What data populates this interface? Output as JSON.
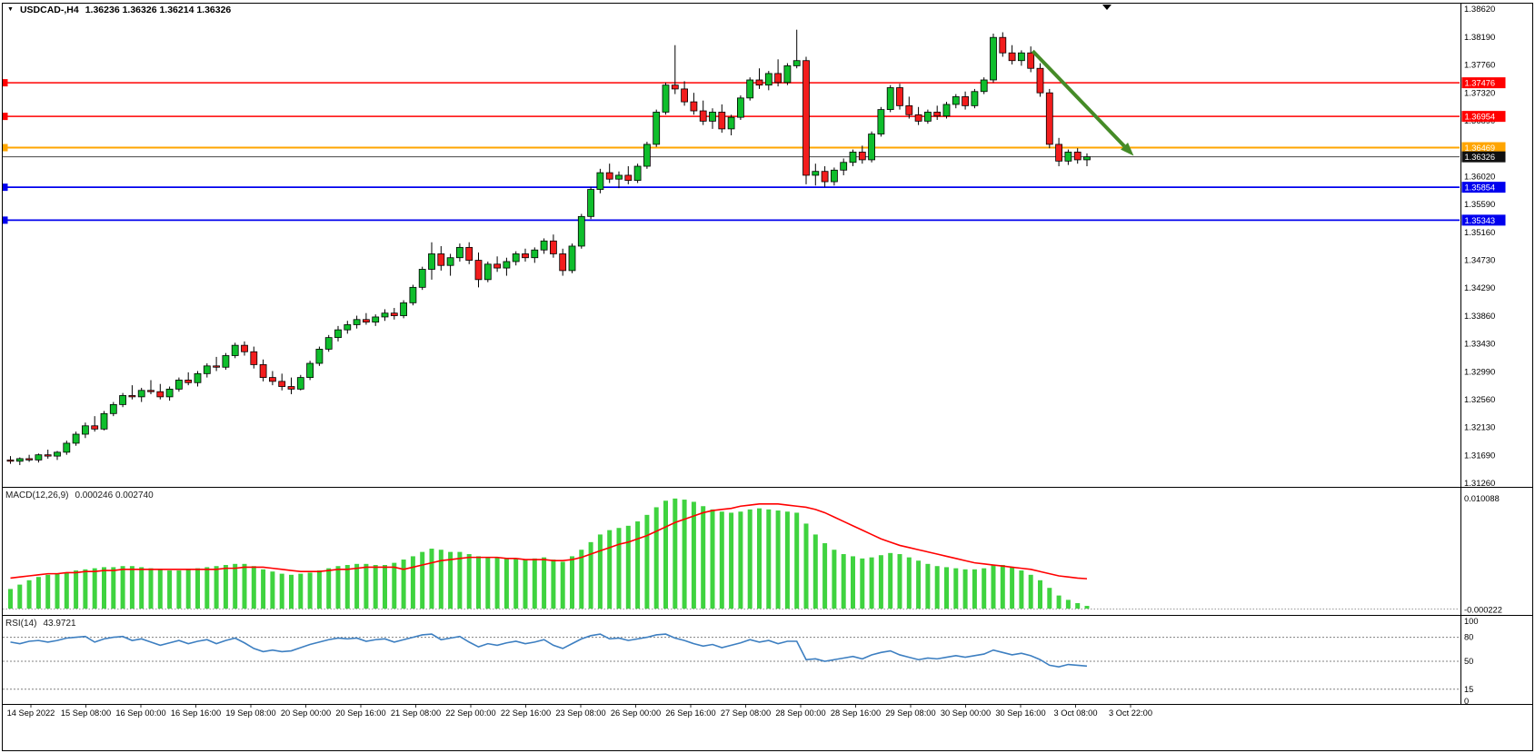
{
  "header": {
    "symbol": "USDCAD-,H4",
    "ohlc": "1.36236 1.36326 1.36214 1.36326"
  },
  "indicators": {
    "macd_name": "MACD(12,26,9)",
    "macd_values": "0.000246 0.002740",
    "rsi_name": "RSI(14)",
    "rsi_value": "43.9721"
  },
  "colors": {
    "candle_up": "#0fbe2c",
    "candle_down": "#f21d1d",
    "wick": "#000000",
    "macd_bar": "#3fd33f",
    "macd_signal": "#ff0000",
    "rsi_line": "#3d7fc1",
    "axis_text": "#000000",
    "background": "#ffffff",
    "arrow": "#458b27"
  },
  "chart_data": {
    "type": "candlestick",
    "symbol": "USDCAD-",
    "timeframe": "H4",
    "ohlc_display": {
      "open": 1.36236,
      "high": 1.36326,
      "low": 1.36214,
      "close": 1.36326
    },
    "y_axis": {
      "max": 1.3862,
      "min": 1.3126,
      "labels": [
        "1.38620",
        "1.38190",
        "1.37760",
        "1.37320",
        "1.36890",
        "1.36460",
        "1.36020",
        "1.35590",
        "1.35160",
        "1.34730",
        "1.34290",
        "1.33860",
        "1.33430",
        "1.32990",
        "1.32560",
        "1.32130",
        "1.31690",
        "1.31260"
      ]
    },
    "x_axis": {
      "labels": [
        "14 Sep 2022",
        "15 Sep 08:00",
        "16 Sep 00:00",
        "16 Sep 16:00",
        "19 Sep 08:00",
        "20 Sep 00:00",
        "20 Sep 16:00",
        "21 Sep 08:00",
        "22 Sep 00:00",
        "22 Sep 16:00",
        "23 Sep 08:00",
        "26 Sep 00:00",
        "26 Sep 16:00",
        "27 Sep 08:00",
        "28 Sep 00:00",
        "28 Sep 16:00",
        "29 Sep 08:00",
        "30 Sep 00:00",
        "30 Sep 16:00",
        "3 Oct 08:00",
        "3 Oct 22:00"
      ]
    },
    "levels": [
      {
        "label": "1.37476",
        "price": 1.37476,
        "color": "#ff0000",
        "width": 1.4
      },
      {
        "label": "1.36954",
        "price": 1.36954,
        "color": "#ff0000",
        "width": 1.4
      },
      {
        "label": "1.36469",
        "price": 1.36469,
        "color": "#ffa500",
        "width": 2
      },
      {
        "label": "1.36326",
        "price": 1.36326,
        "color": "#444444",
        "width": 1,
        "tag_bg": "#101010"
      },
      {
        "label": "1.35854",
        "price": 1.35854,
        "color": "#0000ee",
        "width": 1.8
      },
      {
        "label": "1.35343",
        "price": 1.35343,
        "color": "#0000ee",
        "width": 1.8
      }
    ],
    "trend_arrow": {
      "from_bar": 109.2,
      "from_price": 1.3797,
      "to_bar": 120.0,
      "to_price": 1.3634,
      "color": "#458b27"
    },
    "candles": [
      [
        1.3162,
        1.3168,
        1.3156,
        1.316
      ],
      [
        1.316,
        1.3166,
        1.3154,
        1.3164
      ],
      [
        1.3164,
        1.317,
        1.3159,
        1.3162
      ],
      [
        1.3162,
        1.3172,
        1.3158,
        1.317
      ],
      [
        1.317,
        1.3178,
        1.3164,
        1.3168
      ],
      [
        1.3168,
        1.3176,
        1.3162,
        1.3174
      ],
      [
        1.3174,
        1.3192,
        1.317,
        1.3188
      ],
      [
        1.3188,
        1.3206,
        1.3184,
        1.3202
      ],
      [
        1.3202,
        1.322,
        1.3196,
        1.3215
      ],
      [
        1.3215,
        1.323,
        1.3206,
        1.321
      ],
      [
        1.321,
        1.3238,
        1.3208,
        1.3234
      ],
      [
        1.3234,
        1.3252,
        1.323,
        1.3248
      ],
      [
        1.3248,
        1.3266,
        1.3244,
        1.3262
      ],
      [
        1.3262,
        1.3278,
        1.3256,
        1.326
      ],
      [
        1.326,
        1.3274,
        1.3252,
        1.327
      ],
      [
        1.327,
        1.3286,
        1.3264,
        1.3268
      ],
      [
        1.3268,
        1.328,
        1.3256,
        1.326
      ],
      [
        1.326,
        1.3276,
        1.3254,
        1.3272
      ],
      [
        1.3272,
        1.329,
        1.3268,
        1.3286
      ],
      [
        1.3286,
        1.3298,
        1.3278,
        1.3282
      ],
      [
        1.3282,
        1.33,
        1.3276,
        1.3296
      ],
      [
        1.3296,
        1.3312,
        1.329,
        1.3308
      ],
      [
        1.3308,
        1.3322,
        1.33,
        1.3306
      ],
      [
        1.3306,
        1.3328,
        1.3302,
        1.3324
      ],
      [
        1.3324,
        1.3344,
        1.332,
        1.334
      ],
      [
        1.334,
        1.3346,
        1.3324,
        1.333
      ],
      [
        1.333,
        1.3338,
        1.3304,
        1.331
      ],
      [
        1.331,
        1.3318,
        1.3284,
        1.329
      ],
      [
        1.329,
        1.33,
        1.3278,
        1.3284
      ],
      [
        1.3284,
        1.3296,
        1.327,
        1.3276
      ],
      [
        1.3276,
        1.329,
        1.3264,
        1.3272
      ],
      [
        1.3272,
        1.3294,
        1.327,
        1.329
      ],
      [
        1.329,
        1.3316,
        1.3286,
        1.3312
      ],
      [
        1.3312,
        1.3338,
        1.3308,
        1.3334
      ],
      [
        1.3334,
        1.3356,
        1.333,
        1.3352
      ],
      [
        1.3352,
        1.337,
        1.3346,
        1.3364
      ],
      [
        1.3364,
        1.3378,
        1.3358,
        1.3372
      ],
      [
        1.3372,
        1.3386,
        1.3366,
        1.338
      ],
      [
        1.338,
        1.339,
        1.3372,
        1.3376
      ],
      [
        1.3376,
        1.3388,
        1.337,
        1.3384
      ],
      [
        1.3384,
        1.3396,
        1.3378,
        1.339
      ],
      [
        1.339,
        1.3398,
        1.338,
        1.3386
      ],
      [
        1.3386,
        1.341,
        1.3382,
        1.3406
      ],
      [
        1.3406,
        1.3434,
        1.3402,
        1.343
      ],
      [
        1.343,
        1.3462,
        1.3426,
        1.3458
      ],
      [
        1.3458,
        1.35,
        1.3442,
        1.3482
      ],
      [
        1.3482,
        1.3494,
        1.3456,
        1.3464
      ],
      [
        1.3464,
        1.3482,
        1.3448,
        1.3476
      ],
      [
        1.3476,
        1.3498,
        1.347,
        1.3492
      ],
      [
        1.3492,
        1.35,
        1.3466,
        1.3472
      ],
      [
        1.3472,
        1.3484,
        1.343,
        1.3442
      ],
      [
        1.3442,
        1.347,
        1.3438,
        1.3466
      ],
      [
        1.3466,
        1.3478,
        1.3454,
        1.346
      ],
      [
        1.346,
        1.3476,
        1.3448,
        1.347
      ],
      [
        1.347,
        1.3486,
        1.3464,
        1.3482
      ],
      [
        1.3482,
        1.349,
        1.347,
        1.3476
      ],
      [
        1.3476,
        1.3492,
        1.3468,
        1.3488
      ],
      [
        1.3488,
        1.3506,
        1.3482,
        1.3502
      ],
      [
        1.3502,
        1.3512,
        1.3476,
        1.3482
      ],
      [
        1.3482,
        1.349,
        1.3448,
        1.3456
      ],
      [
        1.3456,
        1.3498,
        1.3452,
        1.3494
      ],
      [
        1.3494,
        1.3544,
        1.349,
        1.354
      ],
      [
        1.354,
        1.3586,
        1.3536,
        1.3582
      ],
      [
        1.3582,
        1.3614,
        1.3576,
        1.3608
      ],
      [
        1.3608,
        1.3622,
        1.3592,
        1.3598
      ],
      [
        1.3598,
        1.361,
        1.3584,
        1.3604
      ],
      [
        1.3604,
        1.3618,
        1.359,
        1.3596
      ],
      [
        1.3596,
        1.3622,
        1.3592,
        1.3618
      ],
      [
        1.3618,
        1.3656,
        1.3614,
        1.3652
      ],
      [
        1.3652,
        1.3706,
        1.3648,
        1.3702
      ],
      [
        1.3702,
        1.3748,
        1.3698,
        1.3744
      ],
      [
        1.3744,
        1.3806,
        1.373,
        1.3738
      ],
      [
        1.3738,
        1.375,
        1.3712,
        1.3718
      ],
      [
        1.3718,
        1.3732,
        1.3698,
        1.3704
      ],
      [
        1.3704,
        1.372,
        1.3682,
        1.3688
      ],
      [
        1.3688,
        1.3708,
        1.3676,
        1.3702
      ],
      [
        1.3702,
        1.3714,
        1.367,
        1.3676
      ],
      [
        1.3676,
        1.3698,
        1.3666,
        1.3694
      ],
      [
        1.3694,
        1.3728,
        1.369,
        1.3724
      ],
      [
        1.3724,
        1.3756,
        1.372,
        1.3752
      ],
      [
        1.3752,
        1.377,
        1.3738,
        1.3744
      ],
      [
        1.3744,
        1.3766,
        1.3736,
        1.3762
      ],
      [
        1.3762,
        1.3784,
        1.3742,
        1.3748
      ],
      [
        1.3748,
        1.3778,
        1.3744,
        1.3774
      ],
      [
        1.3774,
        1.383,
        1.377,
        1.3782
      ],
      [
        1.3782,
        1.3788,
        1.359,
        1.3604
      ],
      [
        1.3604,
        1.3622,
        1.3588,
        1.361
      ],
      [
        1.361,
        1.3618,
        1.3586,
        1.3594
      ],
      [
        1.3594,
        1.3616,
        1.3588,
        1.3612
      ],
      [
        1.3612,
        1.363,
        1.3604,
        1.3624
      ],
      [
        1.3624,
        1.3644,
        1.3618,
        1.364
      ],
      [
        1.364,
        1.365,
        1.3622,
        1.3628
      ],
      [
        1.3628,
        1.3672,
        1.3624,
        1.3668
      ],
      [
        1.3668,
        1.371,
        1.3664,
        1.3706
      ],
      [
        1.3706,
        1.3744,
        1.3702,
        1.374
      ],
      [
        1.374,
        1.3746,
        1.3706,
        1.3712
      ],
      [
        1.3712,
        1.3726,
        1.3692,
        1.3698
      ],
      [
        1.3698,
        1.371,
        1.3682,
        1.3688
      ],
      [
        1.3688,
        1.3706,
        1.3684,
        1.3702
      ],
      [
        1.3702,
        1.3712,
        1.369,
        1.3696
      ],
      [
        1.3696,
        1.3718,
        1.3692,
        1.3714
      ],
      [
        1.3714,
        1.373,
        1.3708,
        1.3726
      ],
      [
        1.3726,
        1.3734,
        1.3706,
        1.3712
      ],
      [
        1.3712,
        1.3738,
        1.3708,
        1.3734
      ],
      [
        1.3734,
        1.3756,
        1.373,
        1.3752
      ],
      [
        1.3752,
        1.3824,
        1.3748,
        1.3818
      ],
      [
        1.3818,
        1.3826,
        1.3788,
        1.3794
      ],
      [
        1.3794,
        1.3806,
        1.3776,
        1.3782
      ],
      [
        1.3782,
        1.3798,
        1.3774,
        1.3794
      ],
      [
        1.3794,
        1.3804,
        1.3764,
        1.377
      ],
      [
        1.377,
        1.3778,
        1.3726,
        1.3732
      ],
      [
        1.3732,
        1.3738,
        1.3646,
        1.3652
      ],
      [
        1.3652,
        1.3662,
        1.3618,
        1.3626
      ],
      [
        1.3626,
        1.3644,
        1.362,
        1.364
      ],
      [
        1.364,
        1.3646,
        1.3622,
        1.3628
      ],
      [
        1.3628,
        1.3638,
        1.3618,
        1.36326
      ]
    ],
    "macd": {
      "label": "MACD(12,26,9)",
      "value_macd": 0.000246,
      "value_signal": 0.00274,
      "axis_max": 0.010088,
      "axis_min": -0.000222,
      "axis_labels": [
        "0.010088",
        "-0.000222"
      ],
      "histogram": [
        0.0018,
        0.0022,
        0.0026,
        0.0029,
        0.0031,
        0.0032,
        0.0033,
        0.0035,
        0.0036,
        0.0037,
        0.0038,
        0.0038,
        0.0039,
        0.0039,
        0.0038,
        0.0037,
        0.0036,
        0.0035,
        0.0035,
        0.0036,
        0.0037,
        0.0038,
        0.0039,
        0.004,
        0.0041,
        0.0041,
        0.0039,
        0.0036,
        0.0034,
        0.0032,
        0.0031,
        0.0032,
        0.0033,
        0.0035,
        0.0037,
        0.0039,
        0.004,
        0.0041,
        0.0041,
        0.004,
        0.004,
        0.0042,
        0.0045,
        0.0048,
        0.0052,
        0.0055,
        0.0054,
        0.0052,
        0.0052,
        0.005,
        0.0048,
        0.0047,
        0.0047,
        0.0046,
        0.0046,
        0.0045,
        0.0046,
        0.0047,
        0.0045,
        0.0043,
        0.0048,
        0.0054,
        0.0061,
        0.0068,
        0.0072,
        0.0074,
        0.0076,
        0.008,
        0.0086,
        0.0093,
        0.0099,
        0.0101,
        0.01,
        0.0098,
        0.0094,
        0.0091,
        0.0089,
        0.0088,
        0.0089,
        0.0091,
        0.0092,
        0.0091,
        0.009,
        0.0089,
        0.0088,
        0.0078,
        0.0068,
        0.006,
        0.0054,
        0.005,
        0.0048,
        0.0046,
        0.0047,
        0.0049,
        0.0051,
        0.005,
        0.0047,
        0.0044,
        0.0041,
        0.0039,
        0.0038,
        0.0037,
        0.0036,
        0.0036,
        0.0037,
        0.004,
        0.004,
        0.0038,
        0.0035,
        0.0031,
        0.0026,
        0.0019,
        0.0012,
        0.0008,
        0.0005,
        0.000246
      ],
      "signal": [
        0.0028,
        0.0029,
        0.003,
        0.0031,
        0.0032,
        0.0032,
        0.0033,
        0.0033,
        0.0034,
        0.0034,
        0.0035,
        0.0035,
        0.0036,
        0.0036,
        0.0036,
        0.0036,
        0.0036,
        0.0036,
        0.0036,
        0.0036,
        0.0036,
        0.0036,
        0.0036,
        0.0037,
        0.0037,
        0.0038,
        0.0038,
        0.0038,
        0.0037,
        0.0036,
        0.0035,
        0.0034,
        0.0034,
        0.0034,
        0.0035,
        0.0036,
        0.0036,
        0.0037,
        0.0038,
        0.0038,
        0.0038,
        0.0038,
        0.0036,
        0.0038,
        0.004,
        0.0042,
        0.0044,
        0.0045,
        0.0046,
        0.0047,
        0.0047,
        0.0047,
        0.0047,
        0.0046,
        0.0046,
        0.0045,
        0.0045,
        0.0045,
        0.0044,
        0.0044,
        0.0045,
        0.0047,
        0.005,
        0.0053,
        0.0056,
        0.0059,
        0.0061,
        0.0064,
        0.0067,
        0.0071,
        0.0075,
        0.0079,
        0.0082,
        0.0085,
        0.0088,
        0.009,
        0.0091,
        0.0092,
        0.0094,
        0.0095,
        0.0096,
        0.0096,
        0.0096,
        0.0095,
        0.0094,
        0.0093,
        0.0091,
        0.0088,
        0.0084,
        0.008,
        0.0076,
        0.0072,
        0.0068,
        0.0064,
        0.0061,
        0.0058,
        0.0056,
        0.0054,
        0.0052,
        0.005,
        0.0048,
        0.0046,
        0.0044,
        0.0042,
        0.0041,
        0.004,
        0.0039,
        0.0038,
        0.0037,
        0.0036,
        0.0034,
        0.0032,
        0.003,
        0.0029,
        0.0028,
        0.00274
      ]
    },
    "rsi": {
      "label": "RSI(14)",
      "value": 43.9721,
      "axis_labels": [
        "100",
        "80",
        "50",
        "15",
        "0"
      ],
      "levels": [
        80,
        50,
        15
      ],
      "values": [
        74,
        72,
        75,
        76,
        74,
        76,
        79,
        80,
        81,
        74,
        78,
        80,
        81,
        76,
        78,
        74,
        70,
        73,
        76,
        72,
        75,
        77,
        72,
        76,
        79,
        73,
        66,
        62,
        64,
        62,
        63,
        67,
        71,
        74,
        77,
        79,
        78,
        79,
        75,
        77,
        78,
        74,
        77,
        80,
        83,
        84,
        77,
        79,
        81,
        74,
        68,
        72,
        70,
        73,
        75,
        72,
        74,
        77,
        70,
        66,
        72,
        78,
        82,
        84,
        78,
        79,
        76,
        78,
        80,
        83,
        84,
        79,
        76,
        72,
        69,
        71,
        67,
        70,
        73,
        77,
        74,
        76,
        72,
        75,
        75,
        52,
        53,
        50,
        52,
        54,
        56,
        53,
        58,
        61,
        63,
        58,
        55,
        52,
        54,
        53,
        55,
        57,
        55,
        57,
        59,
        64,
        61,
        58,
        60,
        57,
        52,
        45,
        43,
        46,
        45,
        43.97
      ]
    }
  }
}
